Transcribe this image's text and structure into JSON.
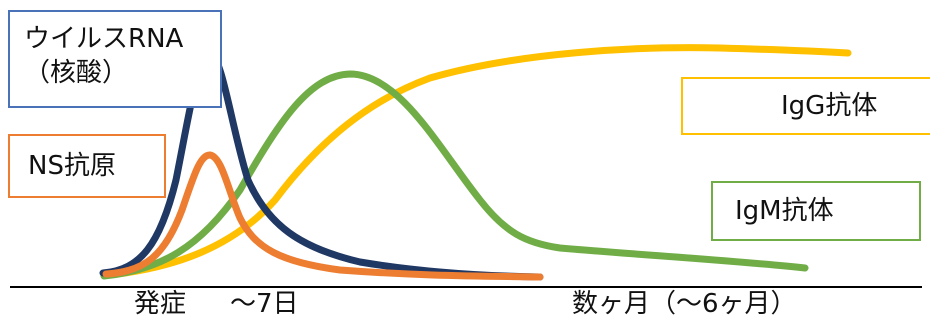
{
  "labels": {
    "rna_line1": "ウイルスRNA",
    "rna_line2": "（核酸）",
    "ns": "NS抗原",
    "igg": "IgG抗体",
    "igm": "IgM抗体"
  },
  "axis": {
    "onset": "発症",
    "day7": "〜7日",
    "months": "数ヶ月（〜6ヶ月）"
  },
  "colors": {
    "rna": "#203864",
    "ns": "#ed7d31",
    "igm": "#70ad47",
    "igg": "#ffc000",
    "axis": "#000000"
  }
}
